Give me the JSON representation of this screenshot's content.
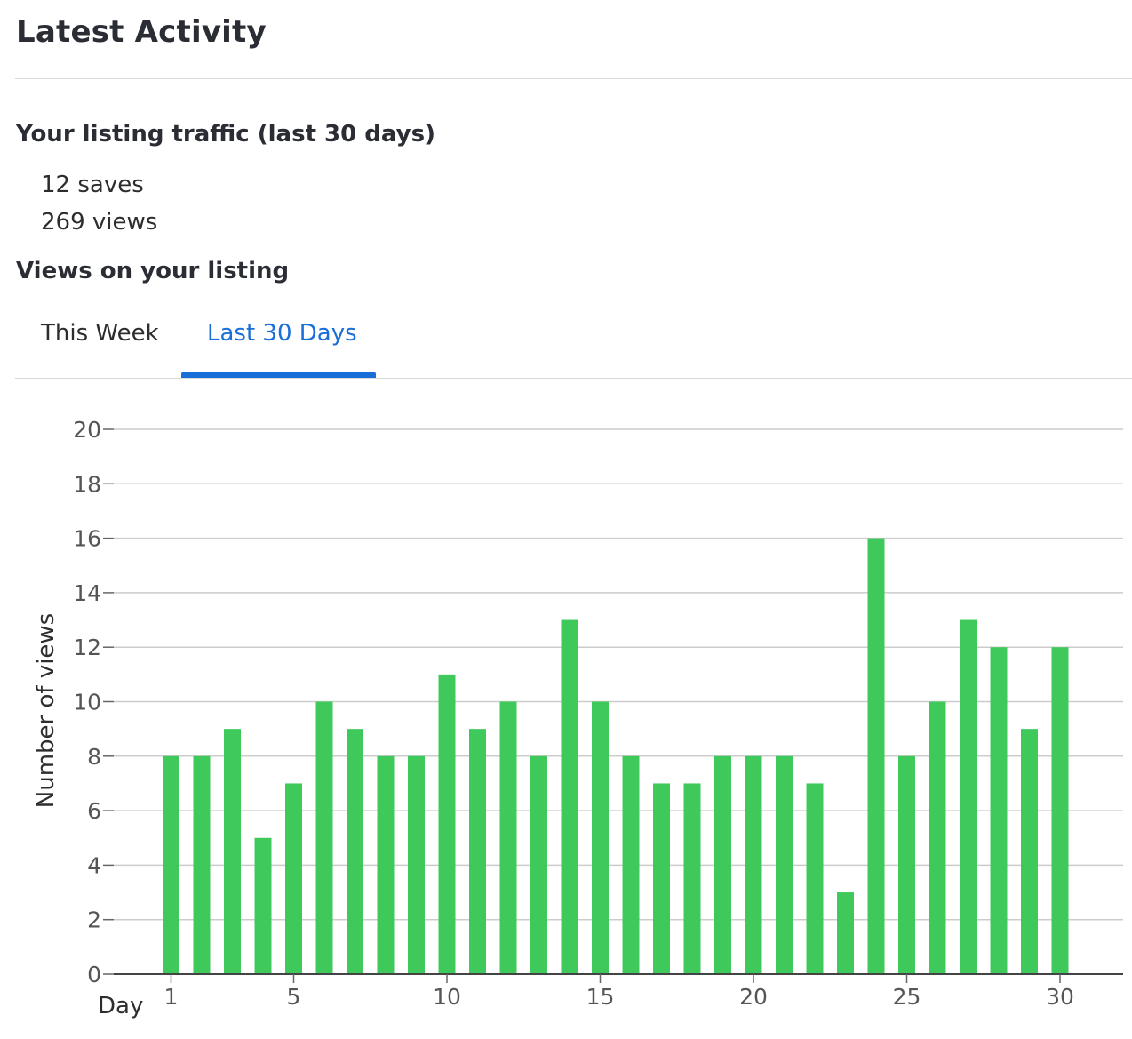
{
  "header": {
    "title": "Latest Activity"
  },
  "traffic": {
    "heading": "Your listing traffic (last 30 days)",
    "saves": "12 saves",
    "views": "269 views"
  },
  "views_section": {
    "heading": "Views on your listing"
  },
  "tabs": [
    {
      "label": "This Week",
      "active": false
    },
    {
      "label": "Last 30 Days",
      "active": true
    }
  ],
  "colors": {
    "accent": "#1a6ed8",
    "bar": "#3ec95a",
    "grid": "#cccccc"
  },
  "chart_data": {
    "type": "bar",
    "xlabel": "Day",
    "ylabel": "Number of views",
    "ylim": [
      0,
      20
    ],
    "yticks": [
      0,
      2,
      4,
      6,
      8,
      10,
      12,
      14,
      16,
      18,
      20
    ],
    "xticks": [
      1,
      5,
      10,
      15,
      20,
      25,
      30
    ],
    "grid": true,
    "categories": [
      1,
      2,
      3,
      4,
      5,
      6,
      7,
      8,
      9,
      10,
      11,
      12,
      13,
      14,
      15,
      16,
      17,
      18,
      19,
      20,
      21,
      22,
      23,
      24,
      25,
      26,
      27,
      28,
      29,
      30
    ],
    "values": [
      8,
      8,
      9,
      5,
      7,
      10,
      9,
      8,
      8,
      11,
      9,
      10,
      8,
      13,
      10,
      8,
      7,
      7,
      8,
      8,
      8,
      7,
      3,
      16,
      8,
      10,
      13,
      12,
      9,
      12
    ]
  }
}
